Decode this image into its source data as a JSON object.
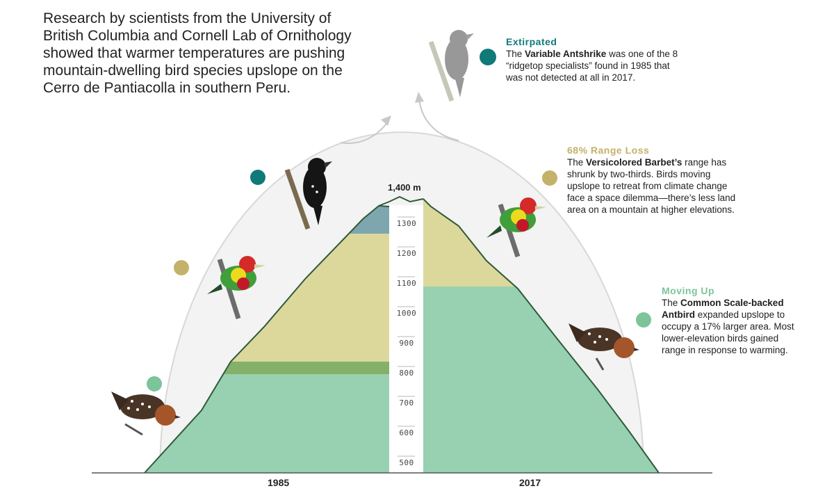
{
  "intro": "Research by scientists from the University of British Columbia and Cornell Lab of Ornithology showed that warmer temperatures are pushing mountain-dwelling bird species upslope on the Cerro de Pantiacolla in southern Peru.",
  "peak_label": "1,400 m",
  "years": {
    "left": "1985",
    "right": "2017"
  },
  "elevation_ticks": [
    "1300",
    "1200",
    "1100",
    "1000",
    "900",
    "800",
    "700",
    "600",
    "500"
  ],
  "colors": {
    "teal": "#0f7a78",
    "gold": "#c4b16a",
    "green": "#7cc49a",
    "band_green": "#97d1b1",
    "band_olive": "#85b06a",
    "band_yellow": "#dcd89c",
    "band_blue": "#7ea6ae",
    "mountain_outline": "#2e5a3a",
    "arc": "#d8d8d8"
  },
  "callouts": [
    {
      "title": "Extirpated",
      "pre": "The ",
      "bold": "Variable Antshrike",
      "post": " was one of the 8 “ridgetop specialists” found in 1985 that was not detected at all in 2017."
    },
    {
      "title": "68% Range Loss",
      "pre": "The ",
      "bold": "Versicolored Barbet’s",
      "post": " range has shrunk by two-thirds. Birds moving upslope to retreat from climate change face a space dilemma—there’s less land area on a mountain at higher elevations."
    },
    {
      "title": "Moving Up",
      "pre": "The ",
      "bold": "Common Scale-backed Antbird",
      "post": " expanded upslope to occupy a 17% larger area. Most lower-elevation birds gained range in response to warming."
    }
  ],
  "icons": [
    "antbird-icon",
    "barbet-icon",
    "antshrike-icon"
  ]
}
